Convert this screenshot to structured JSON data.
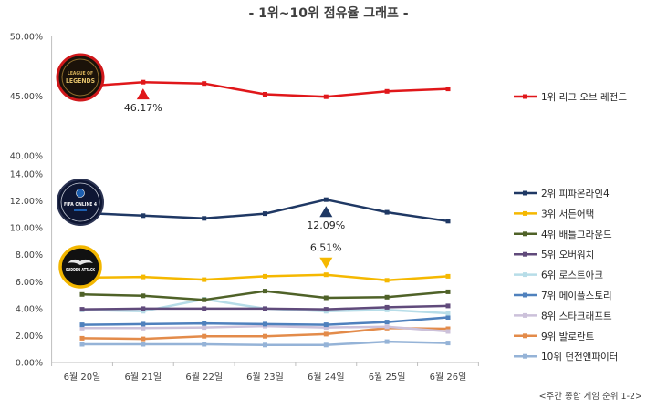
{
  "chart_data": {
    "type": "line",
    "title": "- 1위~10위 점유율 그래프 -",
    "categories": [
      "6월 20일",
      "6월 21일",
      "6월 22일",
      "6월 23일",
      "6월 24일",
      "6월 25일",
      "6월 26일"
    ],
    "grid": false,
    "legend": "right",
    "panels": [
      {
        "ylim": [
          40,
          50
        ],
        "yticks": [
          40,
          45,
          50
        ],
        "ytick_labels": [
          "40.00%",
          "45.00%",
          "50.00%"
        ],
        "series": [
          {
            "name": "1위 리그 오브 레전드",
            "color": "#e0171a",
            "values": [
              45.8,
              46.17,
              46.05,
              45.15,
              44.95,
              45.4,
              45.6
            ]
          }
        ]
      },
      {
        "ylim": [
          0,
          14
        ],
        "yticks": [
          0,
          2,
          4,
          6,
          8,
          10,
          12,
          14
        ],
        "ytick_labels": [
          "0.00%",
          "2.00%",
          "4.00%",
          "6.00%",
          "8.00%",
          "10.00%",
          "12.00%",
          "14.00%"
        ],
        "series": [
          {
            "name": "2위 피파온라인4",
            "color": "#1f3864",
            "values": [
              11.1,
              10.9,
              10.7,
              11.05,
              12.09,
              11.15,
              10.5
            ]
          },
          {
            "name": "3위 서든어택",
            "color": "#f5b800",
            "values": [
              6.3,
              6.35,
              6.15,
              6.4,
              6.51,
              6.1,
              6.4
            ]
          },
          {
            "name": "4위 배틀그라운드",
            "color": "#4f6228",
            "values": [
              5.05,
              4.95,
              4.65,
              5.3,
              4.8,
              4.85,
              5.25
            ]
          },
          {
            "name": "5위 오버워치",
            "color": "#604a7b",
            "values": [
              3.95,
              4.0,
              4.0,
              4.0,
              3.95,
              4.1,
              4.2
            ]
          },
          {
            "name": "6위 로스트아크",
            "color": "#b7dde8",
            "values": [
              3.9,
              3.8,
              4.7,
              4.0,
              3.8,
              3.9,
              3.65
            ]
          },
          {
            "name": "7위 메이플스토리",
            "color": "#4f81bd",
            "values": [
              2.8,
              2.85,
              2.9,
              2.85,
              2.8,
              3.0,
              3.35
            ]
          },
          {
            "name": "8위 스타크래프트",
            "color": "#ccc1da",
            "values": [
              2.55,
              2.55,
              2.6,
              2.7,
              2.6,
              2.65,
              2.3
            ]
          },
          {
            "name": "9위 발로란트",
            "color": "#e38b4a",
            "values": [
              1.8,
              1.75,
              1.95,
              1.95,
              2.1,
              2.55,
              2.5
            ]
          },
          {
            "name": "10위 던전앤파이터",
            "color": "#95b3d7",
            "values": [
              1.35,
              1.35,
              1.35,
              1.3,
              1.3,
              1.55,
              1.45
            ]
          }
        ]
      }
    ],
    "annotations": [
      {
        "panel": 0,
        "series": 0,
        "index": 1,
        "label": "46.17%",
        "marker": "triangle-up",
        "color": "#e0171a"
      },
      {
        "panel": 1,
        "series": 0,
        "index": 4,
        "label": "12.09%",
        "marker": "triangle-up",
        "color": "#1f3864"
      },
      {
        "panel": 1,
        "series": 1,
        "index": 4,
        "label": "6.51%",
        "marker": "triangle-down",
        "color": "#f5b800"
      }
    ],
    "note": "<주간 종합 게임 순위 1-2>"
  },
  "logos": [
    {
      "icon": "league-of-legends-logo",
      "lines": [
        "LEAGUE OF",
        "LEGENDS"
      ]
    },
    {
      "icon": "fifa-online-4-logo",
      "lines": [
        "FIFA ONLINE 4"
      ]
    },
    {
      "icon": "sudden-attack-logo",
      "lines": [
        "SUDDEN ATTACK"
      ]
    }
  ]
}
